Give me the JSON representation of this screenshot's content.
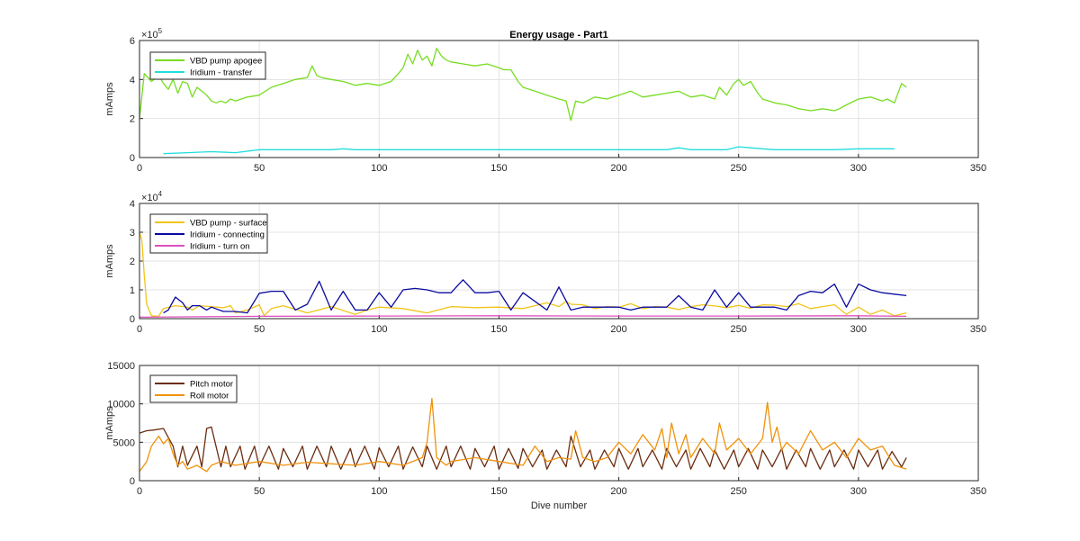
{
  "figure_title": "Energy usage - Part1",
  "xlabel": "Dive number",
  "chart_data": [
    {
      "type": "line",
      "title": "Energy usage - Part1",
      "xlabel": "",
      "ylabel": "mAmps",
      "xlim": [
        0,
        350
      ],
      "ylim": [
        0,
        600000
      ],
      "xticks": [
        "0",
        "50",
        "100",
        "150",
        "200",
        "250",
        "300",
        "350"
      ],
      "yticks": [
        "0",
        "2",
        "4",
        "6"
      ],
      "exponent_label": "×10",
      "exponent": "5",
      "grid": true,
      "legend_position": "top-left",
      "series": [
        {
          "name": "VBD pump apogee",
          "color": "#77dd22",
          "x": [
            0,
            2,
            5,
            8,
            10,
            12,
            14,
            16,
            18,
            20,
            22,
            24,
            26,
            28,
            30,
            32,
            34,
            36,
            38,
            40,
            45,
            50,
            55,
            60,
            65,
            70,
            72,
            74,
            76,
            80,
            85,
            90,
            95,
            100,
            105,
            108,
            110,
            112,
            114,
            116,
            118,
            120,
            122,
            124,
            126,
            128,
            130,
            135,
            140,
            145,
            150,
            152,
            155,
            158,
            160,
            165,
            170,
            175,
            178,
            180,
            182,
            185,
            190,
            195,
            200,
            205,
            210,
            215,
            220,
            225,
            230,
            235,
            240,
            242,
            245,
            248,
            250,
            252,
            255,
            258,
            260,
            265,
            270,
            275,
            280,
            285,
            290,
            292,
            295,
            300,
            305,
            310,
            312,
            315,
            318,
            320
          ],
          "y": [
            200000,
            430000,
            390000,
            420000,
            380000,
            350000,
            400000,
            330000,
            390000,
            380000,
            310000,
            360000,
            340000,
            320000,
            290000,
            280000,
            290000,
            280000,
            300000,
            290000,
            310000,
            320000,
            360000,
            380000,
            400000,
            410000,
            470000,
            420000,
            410000,
            400000,
            390000,
            370000,
            380000,
            370000,
            390000,
            430000,
            460000,
            530000,
            480000,
            550000,
            500000,
            520000,
            470000,
            560000,
            520000,
            500000,
            490000,
            480000,
            470000,
            480000,
            460000,
            450000,
            450000,
            390000,
            360000,
            340000,
            320000,
            300000,
            290000,
            190000,
            290000,
            280000,
            310000,
            300000,
            320000,
            340000,
            310000,
            320000,
            330000,
            340000,
            310000,
            320000,
            300000,
            360000,
            320000,
            380000,
            400000,
            370000,
            390000,
            330000,
            300000,
            280000,
            270000,
            250000,
            240000,
            250000,
            240000,
            250000,
            270000,
            300000,
            310000,
            290000,
            300000,
            280000,
            380000,
            360000
          ]
        },
        {
          "name": "Iridium - transfer",
          "color": "#22dddd",
          "x": [
            10,
            20,
            30,
            40,
            50,
            55,
            60,
            65,
            70,
            75,
            80,
            85,
            90,
            95,
            100,
            105,
            110,
            115,
            120,
            125,
            130,
            135,
            140,
            145,
            150,
            155,
            160,
            170,
            175,
            180,
            190,
            195,
            200,
            205,
            210,
            220,
            225,
            230,
            235,
            240,
            245,
            250,
            255,
            260,
            265,
            270,
            275,
            280,
            285,
            290,
            300,
            310,
            315
          ],
          "y": [
            20000,
            25000,
            30000,
            25000,
            40000,
            40000,
            40000,
            40000,
            40000,
            40000,
            40000,
            45000,
            40000,
            40000,
            40000,
            40000,
            40000,
            40000,
            40000,
            40000,
            40000,
            40000,
            40000,
            40000,
            40000,
            40000,
            40000,
            40000,
            40000,
            40000,
            40000,
            40000,
            40000,
            40000,
            40000,
            40000,
            50000,
            40000,
            40000,
            40000,
            40000,
            55000,
            50000,
            45000,
            40000,
            40000,
            40000,
            40000,
            40000,
            40000,
            45000,
            45000,
            45000
          ]
        }
      ]
    },
    {
      "type": "line",
      "title": "",
      "xlabel": "",
      "ylabel": "mAmps",
      "xlim": [
        0,
        350
      ],
      "ylim": [
        0,
        40000
      ],
      "xticks": [
        "0",
        "50",
        "100",
        "150",
        "200",
        "250",
        "300",
        "350"
      ],
      "yticks": [
        "0",
        "1",
        "2",
        "3",
        "4"
      ],
      "exponent_label": "×10",
      "exponent": "4",
      "grid": true,
      "legend_position": "top-left",
      "series": [
        {
          "name": "VBD pump - surface",
          "color": "#f0c419",
          "x": [
            0,
            1,
            2,
            3,
            5,
            8,
            10,
            15,
            20,
            22,
            25,
            30,
            35,
            38,
            40,
            45,
            50,
            52,
            55,
            60,
            70,
            80,
            90,
            95,
            100,
            110,
            120,
            130,
            140,
            150,
            160,
            165,
            170,
            175,
            178,
            180,
            185,
            190,
            195,
            200,
            205,
            210,
            215,
            220,
            225,
            230,
            235,
            240,
            245,
            250,
            255,
            260,
            265,
            270,
            275,
            280,
            285,
            290,
            295,
            300,
            305,
            310,
            315,
            320
          ],
          "y": [
            30000,
            27000,
            15000,
            5000,
            1000,
            800,
            3500,
            4500,
            4000,
            3000,
            4500,
            4200,
            3800,
            4500,
            2000,
            3000,
            4800,
            1000,
            3500,
            4500,
            2000,
            4200,
            1500,
            3000,
            4000,
            3500,
            2000,
            4200,
            3800,
            4000,
            3500,
            4500,
            5500,
            4200,
            6000,
            5000,
            4800,
            3500,
            4200,
            4000,
            5200,
            3500,
            4200,
            4000,
            3200,
            4200,
            4800,
            4400,
            3800,
            4600,
            3600,
            4800,
            4700,
            4200,
            5200,
            3500,
            4200,
            4800,
            1500,
            4000,
            1500,
            3000,
            1000,
            2000
          ]
        },
        {
          "name": "Iridium - connecting",
          "color": "#0a0aa0",
          "x": [
            10,
            12,
            15,
            18,
            20,
            22,
            25,
            28,
            30,
            35,
            40,
            45,
            50,
            55,
            60,
            65,
            70,
            75,
            80,
            85,
            90,
            95,
            100,
            105,
            110,
            115,
            120,
            125,
            130,
            135,
            140,
            145,
            150,
            155,
            160,
            170,
            175,
            180,
            185,
            190,
            195,
            200,
            205,
            210,
            215,
            220,
            225,
            230,
            235,
            240,
            245,
            250,
            255,
            260,
            265,
            270,
            275,
            280,
            285,
            290,
            295,
            300,
            305,
            310,
            315,
            320
          ],
          "y": [
            2000,
            3000,
            7500,
            5500,
            3000,
            4500,
            4500,
            3000,
            4000,
            2500,
            2500,
            2000,
            8800,
            9500,
            9500,
            3000,
            5000,
            13000,
            3000,
            9500,
            3000,
            3000,
            9000,
            4000,
            10000,
            10500,
            10000,
            9000,
            9000,
            13500,
            9000,
            9000,
            9500,
            3000,
            9000,
            3000,
            11000,
            3000,
            4000,
            4000,
            4000,
            4000,
            3000,
            4000,
            4000,
            4000,
            8000,
            4000,
            3000,
            10000,
            4000,
            9000,
            4000,
            4000,
            4000,
            3000,
            8000,
            9500,
            9000,
            12000,
            4000,
            12000,
            10000,
            9000,
            8500,
            8000
          ]
        },
        {
          "name": "Iridium - turn on",
          "color": "#e050c0",
          "x": [
            0,
            50,
            100,
            150,
            200,
            250,
            300,
            320
          ],
          "y": [
            500,
            800,
            900,
            1000,
            900,
            900,
            1000,
            800
          ]
        }
      ]
    },
    {
      "type": "line",
      "title": "",
      "xlabel": "Dive number",
      "ylabel": "mAmps",
      "xlim": [
        0,
        350
      ],
      "ylim": [
        0,
        15000
      ],
      "xticks": [
        "0",
        "50",
        "100",
        "150",
        "200",
        "250",
        "300",
        "350"
      ],
      "yticks": [
        "0",
        "5000",
        "10000",
        "15000"
      ],
      "grid": true,
      "legend_position": "top-left",
      "series": [
        {
          "name": "Pitch motor",
          "color": "#6b2d10",
          "x": [
            0,
            3,
            6,
            10,
            14,
            16,
            18,
            20,
            24,
            26,
            28,
            30,
            34,
            36,
            38,
            42,
            44,
            48,
            50,
            54,
            58,
            60,
            64,
            68,
            70,
            74,
            78,
            80,
            84,
            88,
            90,
            94,
            98,
            100,
            104,
            108,
            110,
            114,
            118,
            120,
            124,
            128,
            130,
            134,
            138,
            140,
            144,
            148,
            150,
            154,
            158,
            160,
            164,
            168,
            170,
            174,
            178,
            180,
            184,
            188,
            190,
            194,
            198,
            200,
            204,
            208,
            210,
            214,
            218,
            220,
            224,
            228,
            230,
            234,
            238,
            240,
            244,
            248,
            250,
            254,
            258,
            260,
            264,
            268,
            270,
            274,
            278,
            280,
            284,
            288,
            290,
            294,
            298,
            300,
            304,
            308,
            310,
            314,
            318,
            320
          ],
          "y": [
            6200,
            6500,
            6600,
            6800,
            4500,
            1800,
            4500,
            2000,
            4500,
            1800,
            6800,
            7000,
            1800,
            4500,
            1800,
            4500,
            1500,
            4500,
            1800,
            4500,
            1500,
            4200,
            1800,
            4500,
            1500,
            4500,
            1800,
            4500,
            1500,
            4200,
            1800,
            4500,
            1500,
            4300,
            1800,
            4500,
            1500,
            4400,
            1800,
            4500,
            1500,
            4500,
            1800,
            4500,
            1500,
            4200,
            1800,
            4500,
            1500,
            4200,
            1600,
            4200,
            1800,
            4000,
            1500,
            4000,
            1800,
            5800,
            1800,
            4000,
            1500,
            4000,
            1800,
            4200,
            1500,
            4200,
            1800,
            4000,
            1500,
            4200,
            1800,
            4000,
            1500,
            4200,
            1800,
            4000,
            1500,
            4000,
            1800,
            4200,
            1500,
            4000,
            1800,
            4200,
            1500,
            4000,
            1800,
            4200,
            1500,
            4000,
            1800,
            4000,
            1500,
            4000,
            1800,
            4000,
            1500,
            3800,
            1800,
            3000
          ]
        },
        {
          "name": "Roll motor",
          "color": "#f0920a",
          "x": [
            0,
            3,
            5,
            8,
            10,
            12,
            14,
            16,
            18,
            20,
            24,
            28,
            30,
            34,
            40,
            50,
            60,
            70,
            80,
            90,
            100,
            110,
            118,
            120,
            122,
            124,
            126,
            128,
            130,
            140,
            150,
            160,
            165,
            170,
            175,
            180,
            182,
            185,
            190,
            195,
            200,
            205,
            210,
            215,
            218,
            220,
            222,
            225,
            228,
            230,
            235,
            240,
            242,
            245,
            250,
            255,
            260,
            262,
            264,
            266,
            268,
            270,
            275,
            280,
            285,
            290,
            295,
            300,
            305,
            310,
            315,
            320
          ],
          "y": [
            1200,
            2500,
            4500,
            5800,
            4800,
            5500,
            3500,
            2000,
            2500,
            1500,
            2000,
            1200,
            2000,
            2500,
            2000,
            2500,
            2000,
            2400,
            2200,
            2000,
            2500,
            2000,
            3000,
            5000,
            10700,
            3000,
            2500,
            2000,
            2500,
            3000,
            2500,
            2000,
            4500,
            2500,
            3000,
            2800,
            6500,
            3000,
            2500,
            3000,
            5000,
            3500,
            6000,
            4000,
            6800,
            3000,
            7500,
            3500,
            6000,
            3000,
            5500,
            3500,
            7500,
            4000,
            5500,
            3500,
            5500,
            10200,
            5000,
            7000,
            4000,
            5000,
            3500,
            6500,
            4000,
            5000,
            3000,
            5500,
            4000,
            4500,
            2000,
            1500
          ]
        }
      ]
    }
  ]
}
